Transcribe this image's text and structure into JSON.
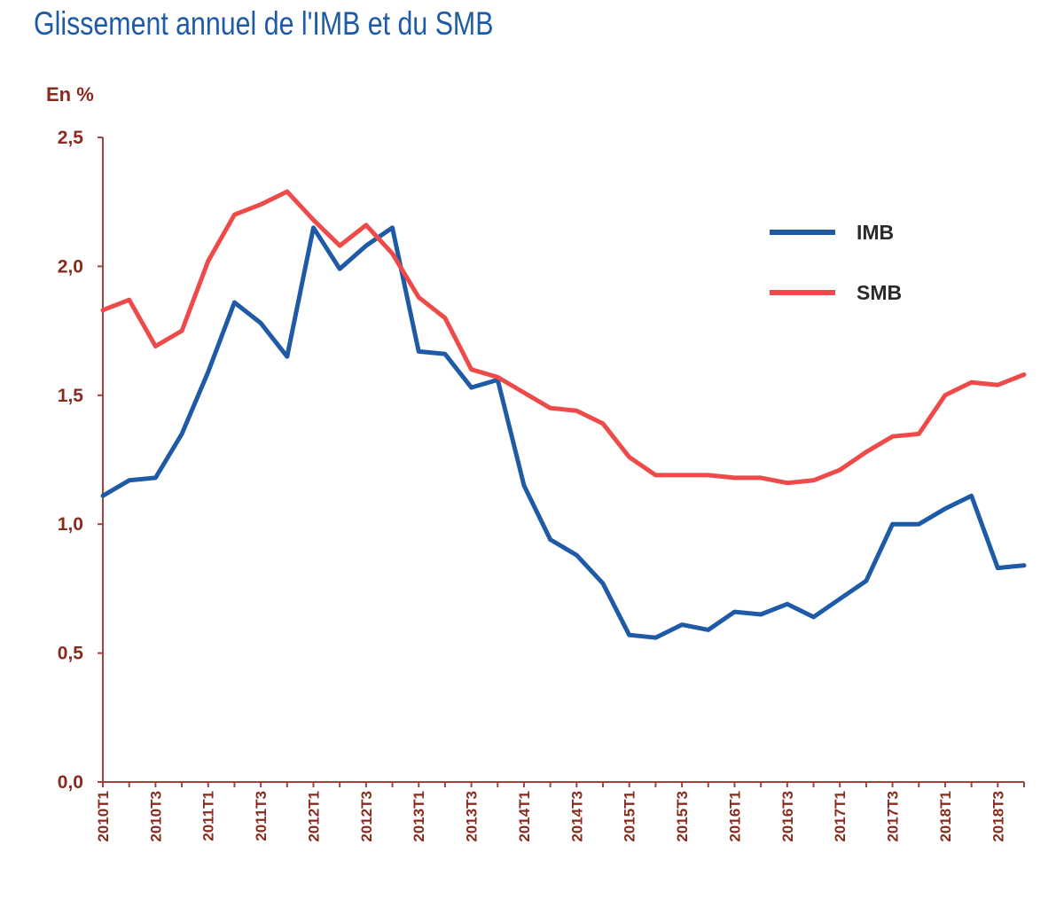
{
  "chart_data": {
    "type": "line",
    "title": "Glissement annuel de l'IMB et du SMB",
    "ylabel": "En %",
    "xlabel": "",
    "ylim": [
      0,
      2.5
    ],
    "yticks": [
      "0,0",
      "0,5",
      "1,0",
      "1,5",
      "2,0",
      "2,5"
    ],
    "grid": false,
    "legend_position": "top-right",
    "x": [
      "2010T1",
      "2010T2",
      "2010T3",
      "2010T4",
      "2011T1",
      "2011T2",
      "2011T3",
      "2011T4",
      "2012T1",
      "2012T2",
      "2012T3",
      "2012T4",
      "2013T1",
      "2013T2",
      "2013T3",
      "2013T4",
      "2014T1",
      "2014T2",
      "2014T3",
      "2014T4",
      "2015T1",
      "2015T2",
      "2015T3",
      "2015T4",
      "2016T1",
      "2016T2",
      "2016T3",
      "2016T4",
      "2017T1",
      "2017T2",
      "2017T3",
      "2017T4",
      "2018T1",
      "2018T2",
      "2018T3",
      "2018T4"
    ],
    "xtick_labels": [
      "2010T1",
      "2010T3",
      "2011T1",
      "2011T3",
      "2012T1",
      "2012T3",
      "2013T1",
      "2013T3",
      "2014T1",
      "2014T3",
      "2015T1",
      "2015T3",
      "2016T1",
      "2016T3",
      "2017T1",
      "2017T3",
      "2018T1",
      "2018T3"
    ],
    "series": [
      {
        "name": "IMB",
        "color": "#1f5aa6",
        "values": [
          1.11,
          1.17,
          1.18,
          1.35,
          1.59,
          1.86,
          1.78,
          1.65,
          2.15,
          1.99,
          2.08,
          2.15,
          1.67,
          1.66,
          1.53,
          1.56,
          1.15,
          0.94,
          0.88,
          0.77,
          0.57,
          0.56,
          0.61,
          0.59,
          0.66,
          0.65,
          0.69,
          0.64,
          0.71,
          0.78,
          1.0,
          1.0,
          1.06,
          1.11,
          0.83,
          0.84
        ]
      },
      {
        "name": "SMB",
        "color": "#ef4a4a",
        "values": [
          1.83,
          1.87,
          1.69,
          1.75,
          2.02,
          2.2,
          2.24,
          2.29,
          2.18,
          2.08,
          2.16,
          2.05,
          1.88,
          1.8,
          1.6,
          1.57,
          1.51,
          1.45,
          1.44,
          1.39,
          1.26,
          1.19,
          1.19,
          1.19,
          1.18,
          1.18,
          1.16,
          1.17,
          1.21,
          1.28,
          1.34,
          1.35,
          1.5,
          1.55,
          1.54,
          1.58
        ]
      }
    ]
  },
  "colors": {
    "axis": "#a0433a",
    "tick_text": "#8a2a1e",
    "title": "#1f5aa6"
  }
}
